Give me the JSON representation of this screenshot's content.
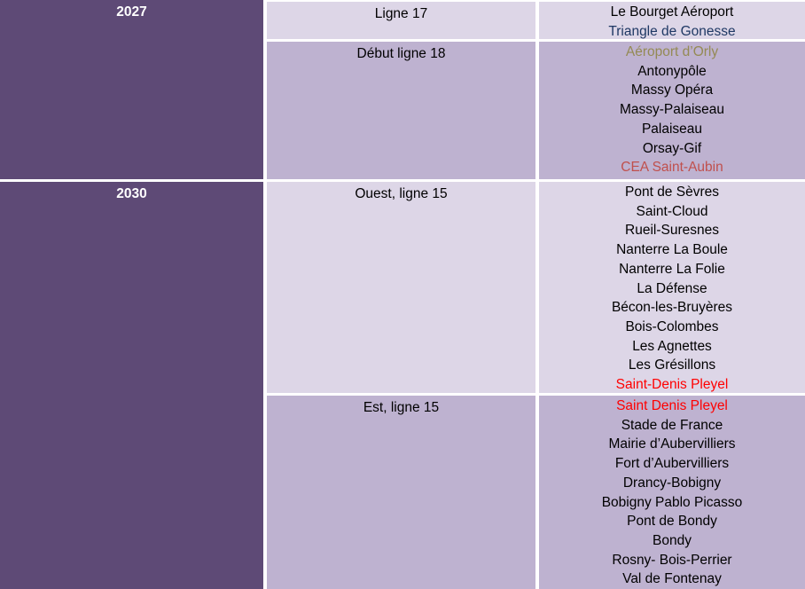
{
  "colors": {
    "dark_purple": "#5E4A76",
    "row_light": "#DDD6E7",
    "row_dark": "#BEB2D0",
    "text_black": "#000000",
    "text_white": "#FFFFFF",
    "navy_blue": "#1F3864",
    "olive_gold": "#948A54",
    "brick_red": "#C0504D",
    "bright_red": "#FF0000"
  },
  "sections": [
    {
      "year": "2027",
      "rows": [
        {
          "line": "Ligne 17",
          "stations": [
            {
              "name": "Le Bourget Aéroport",
              "color": "#000000"
            },
            {
              "name": "Triangle de Gonesse",
              "color": "#1F3864"
            }
          ]
        },
        {
          "line": "Début ligne 18",
          "stations": [
            {
              "name": "Aéroport d’Orly",
              "color": "#948A54"
            },
            {
              "name": "Antonypôle",
              "color": "#000000"
            },
            {
              "name": "Massy Opéra",
              "color": "#000000"
            },
            {
              "name": "Massy-Palaiseau",
              "color": "#000000"
            },
            {
              "name": "Palaiseau",
              "color": "#000000"
            },
            {
              "name": "Orsay-Gif",
              "color": "#000000"
            },
            {
              "name": "CEA Saint-Aubin",
              "color": "#C0504D"
            }
          ]
        }
      ]
    },
    {
      "year": "2030",
      "rows": [
        {
          "line": "Ouest, ligne 15",
          "stations": [
            {
              "name": "Pont de Sèvres",
              "color": "#000000"
            },
            {
              "name": "Saint-Cloud",
              "color": "#000000"
            },
            {
              "name": "Rueil-Suresnes",
              "color": "#000000"
            },
            {
              "name": "Nanterre La Boule",
              "color": "#000000"
            },
            {
              "name": "Nanterre La Folie",
              "color": "#000000"
            },
            {
              "name": "La Défense",
              "color": "#000000"
            },
            {
              "name": "Bécon-les-Bruyères",
              "color": "#000000"
            },
            {
              "name": "Bois-Colombes",
              "color": "#000000"
            },
            {
              "name": "Les Agnettes",
              "color": "#000000"
            },
            {
              "name": "Les Grésillons",
              "color": "#000000"
            },
            {
              "name": "Saint-Denis Pleyel",
              "color": "#FF0000"
            }
          ]
        },
        {
          "line": "Est, ligne 15",
          "stations": [
            {
              "name": "Saint Denis Pleyel",
              "color": "#FF0000"
            },
            {
              "name": "Stade de France",
              "color": "#000000"
            },
            {
              "name": "Mairie d’Aubervilliers",
              "color": "#000000"
            },
            {
              "name": "Fort d’Aubervilliers",
              "color": "#000000"
            },
            {
              "name": "Drancy-Bobigny",
              "color": "#000000"
            },
            {
              "name": "Bobigny Pablo Picasso",
              "color": "#000000"
            },
            {
              "name": "Pont de Bondy",
              "color": "#000000"
            },
            {
              "name": "Bondy",
              "color": "#000000"
            },
            {
              "name": "Rosny- Bois-Perrier",
              "color": "#000000"
            },
            {
              "name": "Val de Fontenay",
              "color": "#000000"
            }
          ]
        }
      ]
    }
  ]
}
